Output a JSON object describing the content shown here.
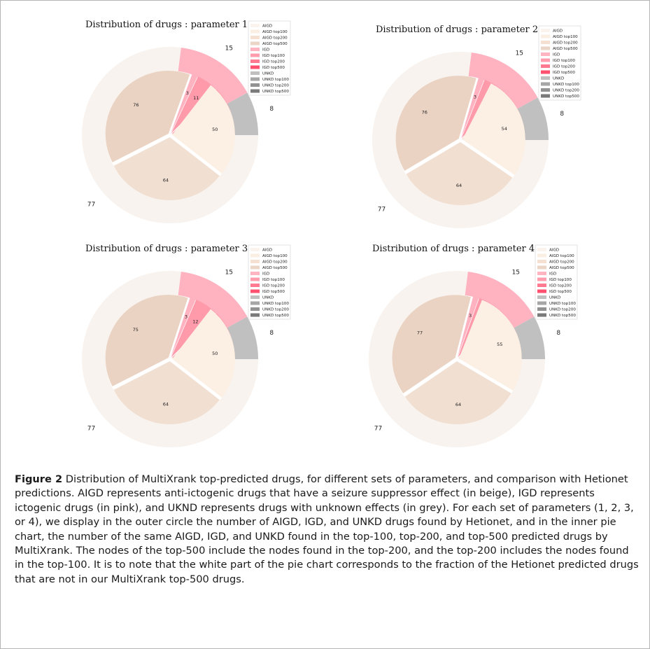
{
  "legend_labels": [
    "AIGD",
    "AIGD top100",
    "AIGD top200",
    "AIGD top500",
    "IGD",
    "IGD top100",
    "IGD top200",
    "IGD top500",
    "UNKD",
    "UNKD top100",
    "UNKD top200",
    "UNKD top500"
  ],
  "legend_colors": [
    "#faf3ee",
    "#fbefe4",
    "#f5e0d2",
    "#ebd5c6",
    "#ffb4c2",
    "#ff9cad",
    "#ff7a91",
    "#ff5070",
    "#c0c0c0",
    "#a6a6a6",
    "#929292",
    "#7a7a7a"
  ],
  "caption": {
    "label": "Figure 2",
    "text": " Distribution of MultiXrank top-predicted drugs, for different sets of parameters, and comparison with Hetionet predictions. AIGD represents anti-ictogenic drugs that have a seizure suppressor effect (in beige), IGD represents ictogenic drugs (in pink), and UKND represents drugs with unknown effects (in grey). For each set of parameters (1, 2, 3, or 4), we display in the outer circle the number of AIGD, IGD, and UNKD drugs found by Hetionet, and in the inner pie chart, the number of the same AIGD, IGD, and UNKD found in the top-100, top-200, and top-500 predicted drugs by MultiXrank. The nodes of the top-500 include the nodes found in the top-200, and the top-200 includes the nodes found in the top-100. It is to note that the white part of the pie chart corresponds to the fraction of the Hetionet predicted drugs that are not in our MultiXrank top-500 drugs."
  },
  "chart_data": [
    {
      "type": "pie",
      "title": "Distribution of drugs : parameter 1",
      "outer": {
        "labels": [
          "AIGD",
          "IGD",
          "UNKD"
        ],
        "values": [
          77,
          15,
          8
        ]
      },
      "inner": {
        "labels": [
          "AIGD top100",
          "AIGD top200",
          "AIGD top500",
          "IGD top100",
          "IGD top200",
          "IGD top500",
          "UNKD top100",
          "UNKD top200",
          "UNKD top500"
        ],
        "values": [
          50,
          64,
          76,
          3,
          11,
          15,
          1,
          2,
          7
        ]
      }
    },
    {
      "type": "pie",
      "title": "Distribution of drugs : parameter 2",
      "outer": {
        "labels": [
          "AIGD",
          "IGD",
          "UNKD"
        ],
        "values": [
          77,
          15,
          8
        ]
      },
      "inner": {
        "labels": [
          "AIGD top100",
          "AIGD top200",
          "AIGD top500",
          "IGD top100",
          "IGD top200",
          "IGD top500",
          "UNKD top100",
          "UNKD top200",
          "UNKD top500"
        ],
        "values": [
          54,
          64,
          76,
          3,
          12,
          15,
          1,
          3,
          7
        ]
      }
    },
    {
      "type": "pie",
      "title": "Distribution of drugs : parameter 3",
      "outer": {
        "labels": [
          "AIGD",
          "IGD",
          "UNKD"
        ],
        "values": [
          77,
          15,
          8
        ]
      },
      "inner": {
        "labels": [
          "AIGD top100",
          "AIGD top200",
          "AIGD top500",
          "IGD top100",
          "IGD top200",
          "IGD top500",
          "UNKD top100",
          "UNKD top200",
          "UNKD top500"
        ],
        "values": [
          50,
          64,
          75,
          3,
          12,
          15,
          1,
          2,
          7
        ]
      }
    },
    {
      "type": "pie",
      "title": "Distribution of drugs : parameter 4",
      "outer": {
        "labels": [
          "AIGD",
          "IGD",
          "UNKD"
        ],
        "values": [
          77,
          15,
          8
        ]
      },
      "inner": {
        "labels": [
          "AIGD top100",
          "AIGD top200",
          "AIGD top500",
          "IGD top100",
          "IGD top200",
          "IGD top500",
          "UNKD top100",
          "UNKD top200",
          "UNKD top500"
        ],
        "values": [
          55,
          64,
          77,
          3,
          12,
          15,
          1,
          4,
          7
        ]
      }
    }
  ]
}
